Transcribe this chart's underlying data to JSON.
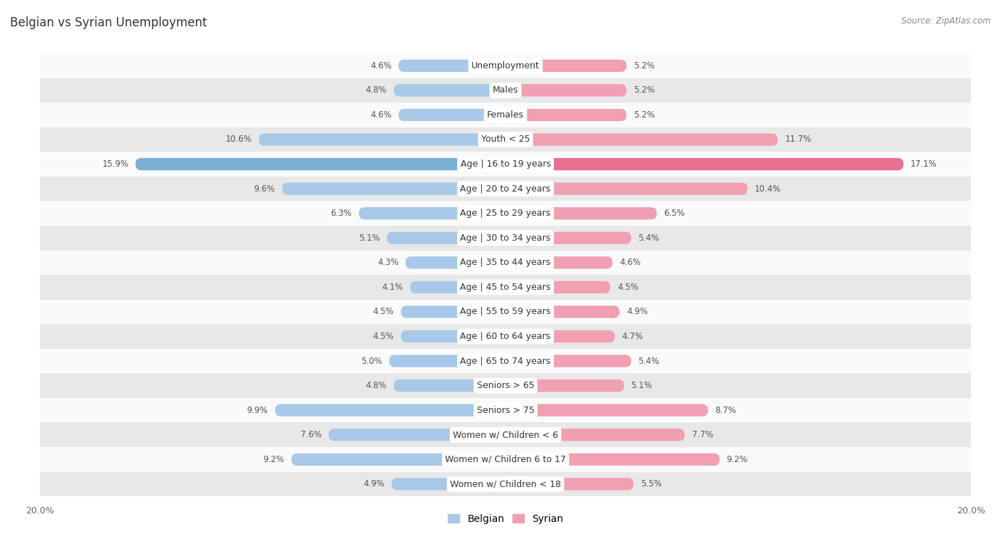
{
  "title": "Belgian vs Syrian Unemployment",
  "source": "Source: ZipAtlas.com",
  "categories": [
    "Unemployment",
    "Males",
    "Females",
    "Youth < 25",
    "Age | 16 to 19 years",
    "Age | 20 to 24 years",
    "Age | 25 to 29 years",
    "Age | 30 to 34 years",
    "Age | 35 to 44 years",
    "Age | 45 to 54 years",
    "Age | 55 to 59 years",
    "Age | 60 to 64 years",
    "Age | 65 to 74 years",
    "Seniors > 65",
    "Seniors > 75",
    "Women w/ Children < 6",
    "Women w/ Children 6 to 17",
    "Women w/ Children < 18"
  ],
  "belgian_values": [
    4.6,
    4.8,
    4.6,
    10.6,
    15.9,
    9.6,
    6.3,
    5.1,
    4.3,
    4.1,
    4.5,
    4.5,
    5.0,
    4.8,
    9.9,
    7.6,
    9.2,
    4.9
  ],
  "syrian_values": [
    5.2,
    5.2,
    5.2,
    11.7,
    17.1,
    10.4,
    6.5,
    5.4,
    4.6,
    4.5,
    4.9,
    4.7,
    5.4,
    5.1,
    8.7,
    7.7,
    9.2,
    5.5
  ],
  "belgian_color_normal": "#a8c8e8",
  "syrian_color_normal": "#f0a0b0",
  "belgian_color_strong": "#7bafd4",
  "syrian_color_strong": "#e87090",
  "highlight_rows": [
    4
  ],
  "bg_color": "#f0f0f0",
  "row_bg_even": "#fafafa",
  "row_bg_odd": "#e8e8e8",
  "axis_limit": 20.0,
  "bar_height": 0.5,
  "label_fontsize": 9.0,
  "title_fontsize": 12,
  "source_fontsize": 8.5,
  "legend_fontsize": 10,
  "value_fontsize": 8.5
}
